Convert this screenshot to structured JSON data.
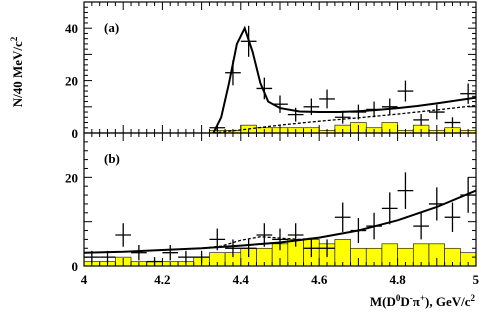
{
  "chart_data": [
    {
      "panel_label": "(a)",
      "type": "mixed",
      "y_axis_label": "N/40 MeV/c",
      "y_axis_label_superscript": "2",
      "ylim": [
        0,
        50
      ],
      "yticks": [
        "0",
        "20",
        "40"
      ],
      "xlim": [
        4.0,
        5.0
      ],
      "data_points": {
        "x": [
          4.34,
          4.38,
          4.42,
          4.46,
          4.5,
          4.54,
          4.58,
          4.62,
          4.66,
          4.7,
          4.74,
          4.78,
          4.82,
          4.86,
          4.9,
          4.94,
          4.98
        ],
        "y": [
          2,
          23,
          35,
          17,
          11,
          7,
          10,
          13,
          6,
          8,
          9,
          10,
          16,
          5,
          8,
          4,
          15
        ]
      },
      "histogram": {
        "x": [
          4.34,
          4.38,
          4.42,
          4.46,
          4.5,
          4.54,
          4.58,
          4.62,
          4.66,
          4.7,
          4.74,
          4.78,
          4.82,
          4.86,
          4.9,
          4.94,
          4.98
        ],
        "values": [
          1,
          1,
          3,
          2,
          2,
          2,
          2,
          1,
          3,
          4,
          2,
          4,
          1,
          3,
          1,
          2,
          1
        ]
      },
      "fit_curve": {
        "x": [
          4.33,
          4.35,
          4.37,
          4.39,
          4.41,
          4.43,
          4.45,
          4.47,
          4.5,
          4.55,
          4.6,
          4.65,
          4.7,
          4.75,
          4.8,
          4.85,
          4.9,
          4.95,
          5.0
        ],
        "y": [
          0,
          6,
          19,
          34,
          40,
          31,
          19,
          12,
          9.5,
          8.2,
          8.0,
          8.0,
          8.3,
          8.8,
          9.5,
          10.3,
          11.3,
          12.4,
          13.5
        ]
      },
      "background_curve": {
        "x": [
          4.33,
          4.4,
          4.5,
          4.6,
          4.7,
          4.8,
          4.9,
          5.0
        ],
        "y": [
          0,
          1.2,
          3.0,
          4.5,
          5.8,
          7.2,
          8.8,
          10.5
        ]
      }
    },
    {
      "panel_label": "(b)",
      "type": "mixed",
      "ylim": [
        0,
        30
      ],
      "yticks": [
        "0",
        "20"
      ],
      "xlim": [
        4.0,
        5.0
      ],
      "xticks": [
        "4",
        "4.2",
        "4.4",
        "4.6",
        "4.8",
        "5"
      ],
      "x_axis_label_parts": [
        "M(D",
        "0",
        "D",
        "-",
        "π",
        "+",
        "), GeV/c",
        "2"
      ],
      "data_points": {
        "x": [
          4.02,
          4.06,
          4.1,
          4.14,
          4.18,
          4.22,
          4.26,
          4.3,
          4.34,
          4.38,
          4.42,
          4.46,
          4.5,
          4.54,
          4.58,
          4.62,
          4.66,
          4.7,
          4.74,
          4.78,
          4.82,
          4.86,
          4.9,
          4.94,
          4.98
        ],
        "y": [
          2,
          2,
          7,
          3,
          1,
          3,
          2,
          2,
          6,
          4,
          4,
          7,
          6,
          7,
          4,
          4,
          11,
          8,
          9,
          13,
          17,
          9,
          14,
          11,
          16
        ]
      },
      "histogram": {
        "x": [
          4.02,
          4.06,
          4.1,
          4.14,
          4.18,
          4.22,
          4.26,
          4.3,
          4.34,
          4.38,
          4.42,
          4.46,
          4.5,
          4.54,
          4.58,
          4.62,
          4.66,
          4.7,
          4.74,
          4.78,
          4.82,
          4.86,
          4.9,
          4.94,
          4.98
        ],
        "values": [
          1,
          1,
          2,
          1,
          1,
          1,
          1,
          2,
          3,
          3,
          4,
          4,
          5,
          6,
          6,
          5,
          6,
          4,
          4,
          5,
          4,
          5,
          5,
          4,
          3
        ]
      },
      "fit_curve": {
        "x": [
          4.0,
          4.1,
          4.2,
          4.3,
          4.4,
          4.5,
          4.6,
          4.7,
          4.8,
          4.9,
          5.0
        ],
        "y": [
          3.0,
          3.2,
          3.6,
          4.0,
          4.6,
          5.3,
          6.4,
          8.0,
          10.3,
          13.3,
          17.0
        ]
      },
      "dashed_curve": {
        "x": [
          4.0,
          4.1,
          4.2,
          4.3,
          4.35,
          4.4,
          4.45,
          4.5,
          4.55,
          4.6,
          4.7
        ],
        "y": [
          3.0,
          3.2,
          3.6,
          4.0,
          4.5,
          5.8,
          6.6,
          6.3,
          6.0,
          6.4,
          8.0
        ]
      }
    }
  ]
}
